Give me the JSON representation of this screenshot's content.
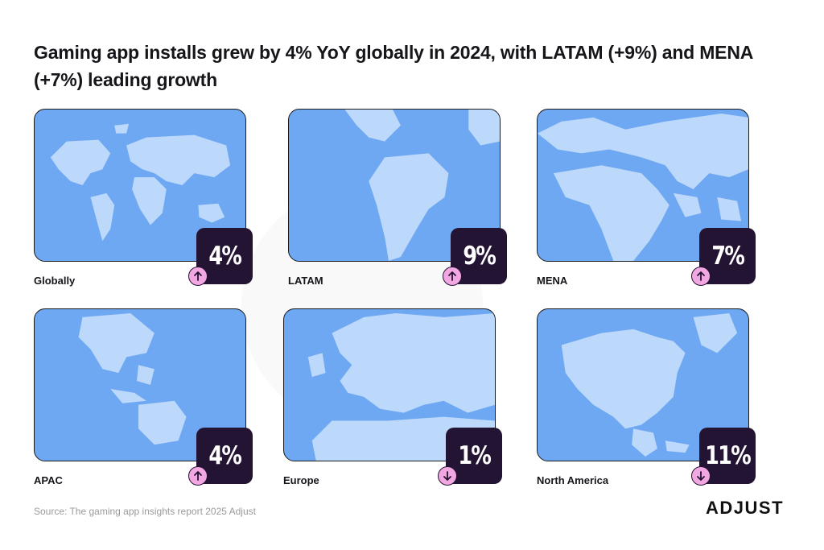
{
  "title": "Gaming app installs grew by 4% YoY globally in 2024, with LATAM (+9%) and MENA (+7%) leading growth",
  "chart_data": {
    "type": "table",
    "title": "Gaming app installs grew by 4% YoY globally in 2024, with LATAM (+9%) and MENA (+7%) leading growth",
    "categories": [
      "Globally",
      "LATAM",
      "MENA",
      "APAC",
      "Europe",
      "North America"
    ],
    "values": [
      4,
      9,
      7,
      4,
      -1,
      -11
    ],
    "display": [
      "4%",
      "9%",
      "7%",
      "4%",
      "1%",
      "11%"
    ],
    "direction": [
      "up",
      "up",
      "up",
      "up",
      "down",
      "down"
    ],
    "unit": "%"
  },
  "colors": {
    "ocean": "#6fa8f2",
    "land": "#bcd8fb",
    "badge": "#231433",
    "arrow": "#f2a7e3"
  },
  "icons": {
    "up": "arrow-up-icon",
    "down": "arrow-down-icon"
  },
  "source": "Source: The gaming app insights report 2025 Adjust",
  "logo": "ADJUST"
}
